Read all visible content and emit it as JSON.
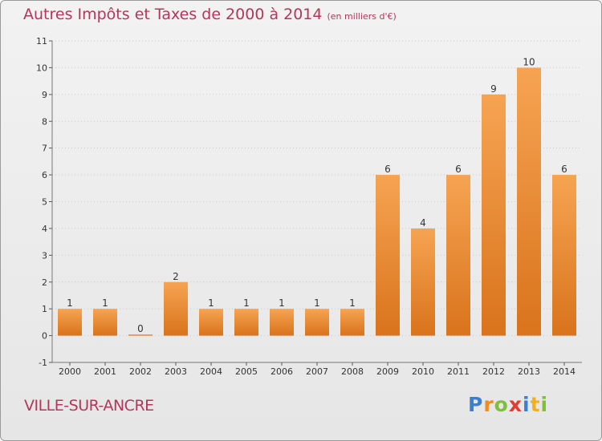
{
  "title": "Autres Impôts et Taxes de 2000 à 2014",
  "subtitle": "(en milliers d'€)",
  "place": "VILLE-SUR-ANCRE",
  "brand": {
    "letters": [
      "P",
      "r",
      "o",
      "x",
      "i",
      "t",
      "i"
    ],
    "colors": [
      "#3a7fd2",
      "#f28a1e",
      "#7fbf3a",
      "#e03c32",
      "#3a7fd2",
      "#f2b01e",
      "#7fbf3a"
    ]
  },
  "colors": {
    "bar": "#f0923a",
    "title": "#b4365a"
  },
  "chart_data": {
    "type": "bar",
    "categories": [
      "2000",
      "2001",
      "2002",
      "2003",
      "2004",
      "2005",
      "2006",
      "2007",
      "2008",
      "2009",
      "2010",
      "2011",
      "2012",
      "2013",
      "2014"
    ],
    "values": [
      1,
      1,
      0,
      2,
      1,
      1,
      1,
      1,
      1,
      6,
      4,
      6,
      9,
      10,
      6
    ],
    "data_labels": [
      "1",
      "1",
      "0",
      "2",
      "1",
      "1",
      "1",
      "1",
      "1",
      "6",
      "4",
      "6",
      "9",
      "10",
      "6"
    ],
    "title": "Autres Impôts et Taxes de 2000 à 2014",
    "xlabel": "",
    "ylabel": "",
    "ylim": [
      -1,
      11
    ],
    "y_ticks": [
      "-1",
      "0",
      "1",
      "2",
      "3",
      "4",
      "5",
      "6",
      "7",
      "8",
      "9",
      "10",
      "11"
    ],
    "grid": true
  }
}
